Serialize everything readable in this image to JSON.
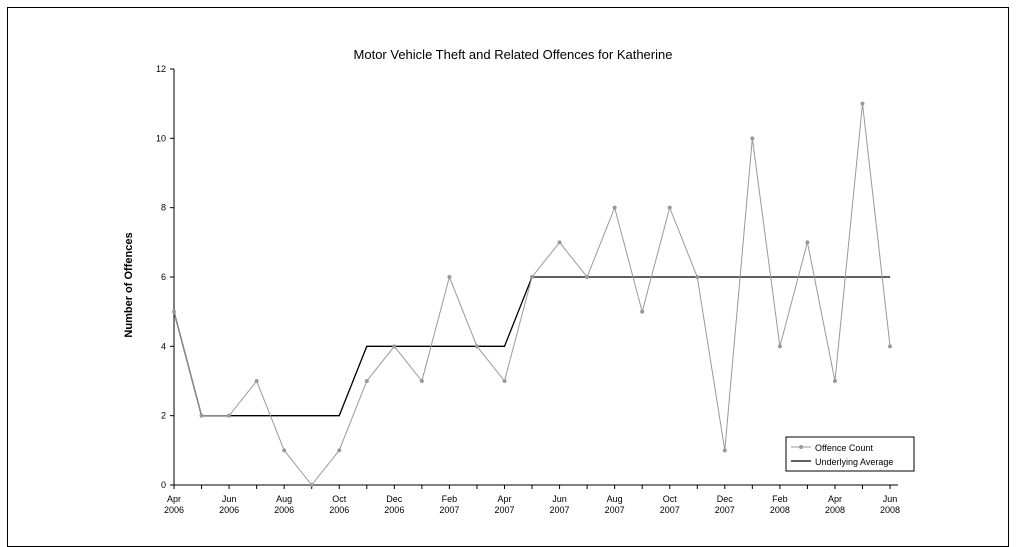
{
  "chart_data": {
    "type": "line",
    "title": "Motor Vehicle Theft and Related Offences for Katherine",
    "xlabel": "",
    "ylabel": "Number of Offences",
    "ylim": [
      0,
      12
    ],
    "yticks": [
      0,
      2,
      4,
      6,
      8,
      10,
      12
    ],
    "grid": false,
    "legend_position": "bottom-right",
    "x": [
      "Apr 2006",
      "May 2006",
      "Jun 2006",
      "Jul 2006",
      "Aug 2006",
      "Sep 2006",
      "Oct 2006",
      "Nov 2006",
      "Dec 2006",
      "Jan 2007",
      "Feb 2007",
      "Mar 2007",
      "Apr 2007",
      "May 2007",
      "Jun 2007",
      "Jul 2007",
      "Aug 2007",
      "Sep 2007",
      "Oct 2007",
      "Nov 2007",
      "Dec 2007",
      "Jan 2008",
      "Feb 2008",
      "Mar 2008",
      "Apr 2008",
      "May 2008",
      "Jun 2008"
    ],
    "xtick_labels": [
      [
        "Apr",
        "2006"
      ],
      [
        "Jun",
        "2006"
      ],
      [
        "Aug",
        "2006"
      ],
      [
        "Oct",
        "2006"
      ],
      [
        "Dec",
        "2006"
      ],
      [
        "Feb",
        "2007"
      ],
      [
        "Apr",
        "2007"
      ],
      [
        "Jun",
        "2007"
      ],
      [
        "Aug",
        "2007"
      ],
      [
        "Oct",
        "2007"
      ],
      [
        "Dec",
        "2007"
      ],
      [
        "Feb",
        "2008"
      ],
      [
        "Apr",
        "2008"
      ],
      [
        "Jun",
        "2008"
      ]
    ],
    "series": [
      {
        "name": "Offence Count",
        "color": "#999999",
        "marker": "circle",
        "values": [
          5,
          2,
          2,
          3,
          1,
          0,
          1,
          3,
          4,
          3,
          6,
          4,
          3,
          6,
          7,
          6,
          8,
          5,
          8,
          6,
          1,
          10,
          4,
          7,
          3,
          11,
          4
        ]
      },
      {
        "name": "Underlying Average",
        "color": "#000000",
        "marker": "none",
        "values": [
          5,
          2,
          2,
          2,
          2,
          2,
          2,
          4,
          4,
          4,
          4,
          4,
          4,
          6,
          6,
          6,
          6,
          6,
          6,
          6,
          6,
          6,
          6,
          6,
          6,
          6,
          6
        ]
      }
    ]
  }
}
